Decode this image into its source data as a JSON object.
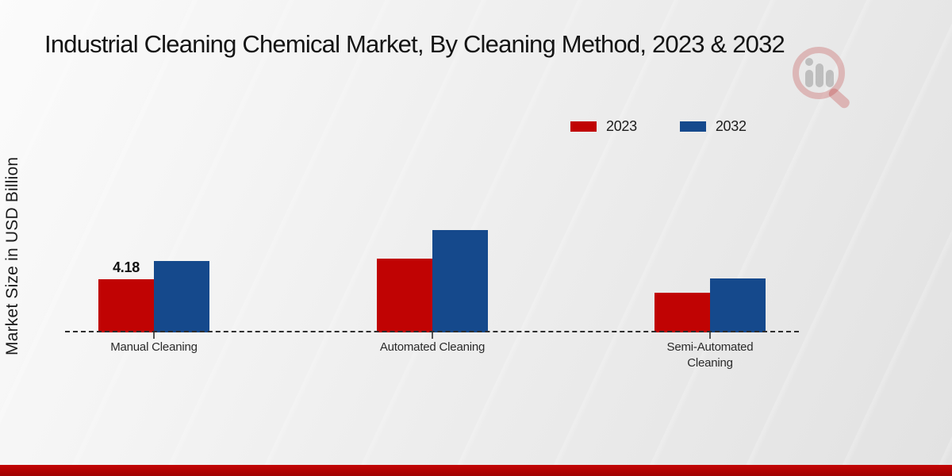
{
  "title": "Industrial Cleaning Chemical Market, By Cleaning Method, 2023 & 2032",
  "y_axis_label": "Market Size in USD Billion",
  "legend": {
    "position": "top-right",
    "items": [
      {
        "label": "2023",
        "color": "#c00303"
      },
      {
        "label": "2032",
        "color": "#15498c"
      }
    ]
  },
  "chart_data": {
    "type": "bar",
    "title": "Industrial Cleaning Chemical Market, By Cleaning Method, 2023 & 2032",
    "ylabel": "Market Size in USD Billion",
    "xlabel": "",
    "categories": [
      "Manual Cleaning",
      "Automated Cleaning",
      "Semi-Automated Cleaning"
    ],
    "series": [
      {
        "name": "2023",
        "color": "#c00303",
        "values": [
          4.18,
          5.8,
          3.1
        ]
      },
      {
        "name": "2032",
        "color": "#15498c",
        "values": [
          5.6,
          8.05,
          4.25
        ]
      }
    ],
    "data_labels": [
      {
        "category_index": 0,
        "series_index": 0,
        "text": "4.18"
      }
    ],
    "ylim": [
      0,
      9
    ],
    "grid": false,
    "axis_style": "dashed-baseline-only",
    "legend_position": "top-right"
  },
  "colors": {
    "series_2023": "#c00303",
    "series_2032": "#15498c",
    "baseline": "#2f2f2f",
    "footer_band": "#b80303",
    "title_text": "#141414"
  },
  "logo": {
    "name": "market-research-watermark-logo"
  }
}
